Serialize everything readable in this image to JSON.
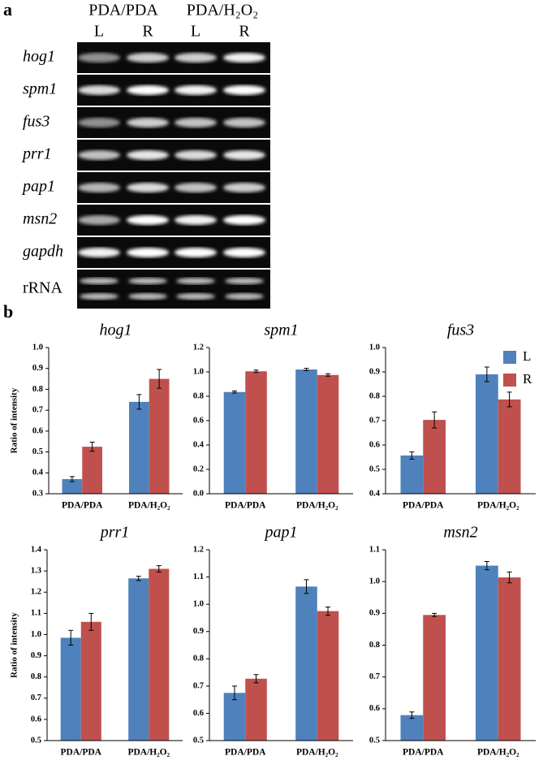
{
  "panel_labels": [
    "a",
    "b"
  ],
  "gel": {
    "conditions": [
      "PDA/PDA",
      "PDA/H₂O₂"
    ],
    "lanes": [
      "L",
      "R",
      "L",
      "R"
    ],
    "genes": [
      "hog1",
      "spm1",
      "fus3",
      "prr1",
      "pap1",
      "msn2",
      "gapdh",
      "rRNA"
    ]
  },
  "chart_data": [
    {
      "type": "bar",
      "title": "hog1",
      "ylabel": "Ratio of intensity",
      "categories": [
        "PDA/PDA",
        "PDA/H₂O₂"
      ],
      "series": [
        {
          "color": "#4f81bd",
          "values": [
            0.37,
            0.74
          ],
          "errors": [
            0.012,
            0.035
          ]
        },
        {
          "color": "#c0504d",
          "values": [
            0.525,
            0.85
          ],
          "errors": [
            0.022,
            0.045
          ]
        }
      ],
      "ylim": [
        0.3,
        1
      ],
      "yticks": [
        0.3,
        0.4,
        0.5,
        0.6,
        0.7,
        0.8,
        0.9,
        {
          "value": 1,
          "label": "1.0"
        }
      ]
    },
    {
      "type": "bar",
      "title": "spm1",
      "categories": [
        "PDA/PDA",
        "PDA/H₂O₂"
      ],
      "series": [
        {
          "color": "#4f81bd",
          "values": [
            0.835,
            1.02
          ],
          "errors": [
            0.008,
            0.01
          ]
        },
        {
          "color": "#c0504d",
          "values": [
            1.005,
            0.975
          ],
          "errors": [
            0.01,
            0.01
          ]
        }
      ],
      "ylim": [
        0,
        1.2
      ],
      "yticks": [
        {
          "value": 0,
          "label": "0.0"
        },
        0.2,
        0.4,
        0.6,
        0.8,
        {
          "value": 1,
          "label": "1.0"
        },
        1.2
      ]
    },
    {
      "type": "bar",
      "title": "fus3",
      "categories": [
        "PDA/PDA",
        "PDA/H₂O₂"
      ],
      "legend": "upper right",
      "series": [
        {
          "name": "L",
          "color": "#4f81bd",
          "values": [
            0.557,
            0.89
          ],
          "errors": [
            0.015,
            0.03
          ]
        },
        {
          "name": "R",
          "color": "#c0504d",
          "values": [
            0.703,
            0.787
          ],
          "errors": [
            0.033,
            0.03
          ]
        }
      ],
      "ylim": [
        0.4,
        1
      ],
      "yticks": [
        0.4,
        0.5,
        0.6,
        0.7,
        0.8,
        0.9,
        {
          "value": 1,
          "label": "1.0"
        }
      ]
    },
    {
      "type": "bar",
      "title": "prr1",
      "ylabel": "Ratio of intensity",
      "categories": [
        "PDA/PDA",
        "PDA/H₂O₂"
      ],
      "series": [
        {
          "color": "#4f81bd",
          "values": [
            0.985,
            1.265
          ],
          "errors": [
            0.035,
            0.01
          ]
        },
        {
          "color": "#c0504d",
          "values": [
            1.06,
            1.31
          ],
          "errors": [
            0.04,
            0.015
          ]
        }
      ],
      "ylim": [
        0.5,
        1.4
      ],
      "yticks": [
        0.5,
        0.6,
        0.7,
        0.8,
        0.9,
        {
          "value": 1,
          "label": "1.0"
        },
        1.1,
        1.2,
        1.3,
        1.4
      ]
    },
    {
      "type": "bar",
      "title": "pap1",
      "categories": [
        "PDA/PDA",
        "PDA/H₂O₂"
      ],
      "series": [
        {
          "color": "#4f81bd",
          "values": [
            0.675,
            1.065
          ],
          "errors": [
            0.025,
            0.025
          ]
        },
        {
          "color": "#c0504d",
          "values": [
            0.727,
            0.975
          ],
          "errors": [
            0.015,
            0.015
          ]
        }
      ],
      "ylim": [
        0.5,
        1.2
      ],
      "yticks": [
        0.5,
        0.6,
        0.7,
        0.8,
        0.9,
        {
          "value": 1,
          "label": "1.0"
        },
        1.1,
        1.2
      ]
    },
    {
      "type": "bar",
      "title": "msn2",
      "categories": [
        "PDA/PDA",
        "PDA/H₂O₂"
      ],
      "series": [
        {
          "color": "#4f81bd",
          "values": [
            0.58,
            1.05
          ],
          "errors": [
            0.01,
            0.013
          ]
        },
        {
          "color": "#c0504d",
          "values": [
            0.895,
            1.013
          ],
          "errors": [
            0.005,
            0.017
          ]
        }
      ],
      "ylim": [
        0.5,
        1.1
      ],
      "yticks": [
        0.5,
        0.6,
        0.7,
        0.8,
        0.9,
        {
          "value": 1,
          "label": "1.0"
        },
        1.1
      ]
    }
  ]
}
